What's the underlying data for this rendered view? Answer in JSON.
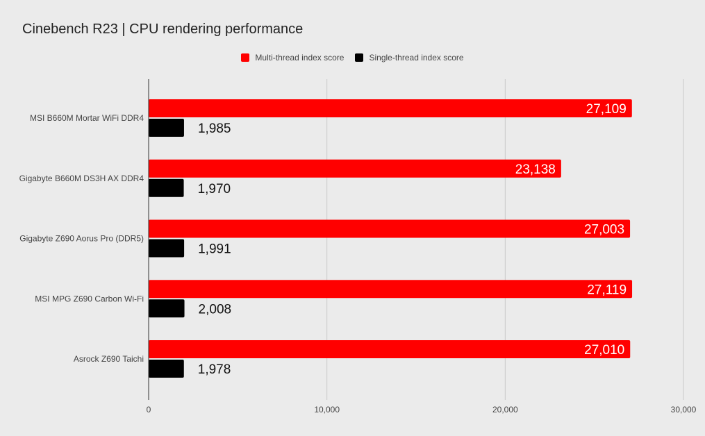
{
  "chart_data": {
    "type": "bar",
    "orientation": "horizontal",
    "title": "Cinebench R23 | CPU rendering performance",
    "categories": [
      "MSI B660M Mortar WiFi DDR4",
      "Gigabyte B660M DS3H AX DDR4",
      "Gigabyte Z690 Aorus Pro (DDR5)",
      "MSI MPG Z690 Carbon Wi-Fi",
      "Asrock Z690 Taichi"
    ],
    "series": [
      {
        "name": "Multi-thread index score",
        "color": "#ff0000",
        "values": [
          27109,
          23138,
          27003,
          27119,
          27010
        ],
        "labels": [
          "27,109",
          "23,138",
          "27,003",
          "27,119",
          "27,010"
        ]
      },
      {
        "name": "Single-thread index score",
        "color": "#000000",
        "values": [
          1985,
          1970,
          1991,
          2008,
          1978
        ],
        "labels": [
          "1,985",
          "1,970",
          "1,991",
          "2,008",
          "1,978"
        ]
      }
    ],
    "xlim": [
      0,
      30000
    ],
    "xticks": [
      0,
      10000,
      20000,
      30000
    ],
    "xtick_labels": [
      "0",
      "10,000",
      "20,000",
      "30,000"
    ],
    "grid": true,
    "legend_position": "top-center"
  }
}
